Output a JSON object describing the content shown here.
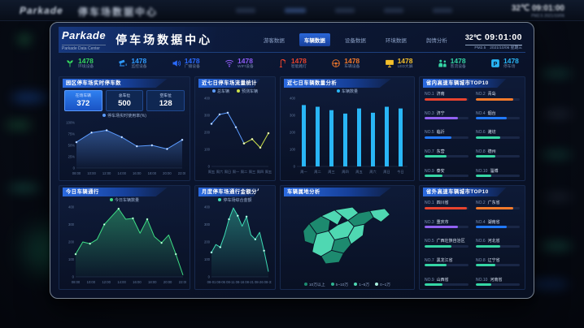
{
  "background": {
    "brand": "Parkade",
    "title": "停车场数据中心",
    "time": "32℃ 09:01:00",
    "meta": "PM2.5   2021/10/06"
  },
  "header": {
    "brand": "Parkade",
    "subtitle": "Parkade Data Center",
    "title": "停车场数据中心",
    "nav": [
      {
        "label": "游客数据",
        "active": false
      },
      {
        "label": "车辆数据",
        "active": true
      },
      {
        "label": "设备数据",
        "active": false
      },
      {
        "label": "环境数据",
        "active": false
      },
      {
        "label": "舆情分析",
        "active": false
      }
    ],
    "temp": "32℃",
    "time": "09:01:00",
    "pm": "PM2.5",
    "date": "2021/10/06 星期三"
  },
  "stats": [
    {
      "icon": "leaf-icon",
      "value": "1478",
      "label": "环境设备",
      "color": "#35d65e"
    },
    {
      "icon": "camera-icon",
      "value": "1478",
      "label": "监控设备",
      "color": "#2f9bff"
    },
    {
      "icon": "speaker-icon",
      "value": "1478",
      "label": "广播设备",
      "color": "#2b6bff"
    },
    {
      "icon": "wifi-icon",
      "value": "1478",
      "label": "WIFI设备",
      "color": "#8e5cf6"
    },
    {
      "icon": "lamp-icon",
      "value": "1478",
      "label": "智能路灯",
      "color": "#e8432e"
    },
    {
      "icon": "steering-wheel-icon",
      "value": "1478",
      "label": "车辆设备",
      "color": "#f57a2b"
    },
    {
      "icon": "screen-icon",
      "value": "1478",
      "label": "LED大屏",
      "color": "#f5c02b"
    },
    {
      "icon": "people-icon",
      "value": "1478",
      "label": "客流设备",
      "color": "#35d6a5"
    },
    {
      "icon": "parking-icon",
      "value": "1478",
      "label": "停车场",
      "color": "#29b6f6"
    }
  ],
  "panels": {
    "realtime": {
      "title": "园区停车场实时停车数",
      "boxes": [
        {
          "label": "在场车辆",
          "value": "372"
        },
        {
          "label": "总车位",
          "value": "500"
        },
        {
          "label": "空车位",
          "value": "128"
        }
      ]
    },
    "flow": {
      "title": "近七日停车场流量统计"
    },
    "daily": {
      "title": "近七日车辆数量分析"
    },
    "top_in": {
      "title": "省内高速车辆城市TOP10"
    },
    "today": {
      "title": "今日车辆通行"
    },
    "monthly": {
      "title": "月度停车场通行金额分析"
    },
    "map": {
      "title": "车辆属地分析",
      "legend": [
        {
          "label": "10万以上",
          "color": "#1d8a6f"
        },
        {
          "label": "5~10万",
          "color": "#2fb391"
        },
        {
          "label": "1~5万",
          "color": "#4fd8b2"
        },
        {
          "label": "0~1万",
          "color": "#a9efdd"
        }
      ]
    },
    "top_out": {
      "title": "省外高速车辆城市TOP10"
    }
  },
  "chart_data": [
    {
      "id": "usage",
      "type": "line",
      "area": true,
      "title": "园区停车场实时停车数",
      "categories": [
        "08:00",
        "10:00",
        "12:00",
        "14:00",
        "16:00",
        "18:00",
        "20:00",
        "22:00"
      ],
      "series": [
        {
          "name": "停车场实时使用率(%)",
          "color": "#5b9bff",
          "values": [
            57,
            78,
            83,
            68,
            48,
            50,
            42,
            62
          ]
        }
      ],
      "ylim": [
        0,
        100
      ],
      "yticks": [
        "100%",
        "75%",
        "50%",
        "25%",
        "0"
      ]
    },
    {
      "id": "flow",
      "type": "line",
      "area": false,
      "title": "近七日停车场流量统计",
      "categories": [
        "周五",
        "周六",
        "周日",
        "周一",
        "周二",
        "周三",
        "周四",
        "周五"
      ],
      "series": [
        {
          "name": "总车辆",
          "color": "#5b9bff",
          "values": [
            250,
            305,
            315,
            230,
            135,
            null,
            null,
            null
          ]
        },
        {
          "name": "预测车辆",
          "color": "#cbe04a",
          "values": [
            null,
            null,
            null,
            null,
            135,
            160,
            110,
            195
          ]
        }
      ],
      "ylim": [
        0,
        400
      ],
      "yticks": [
        "400",
        "300",
        "200",
        "100",
        "0"
      ]
    },
    {
      "id": "daily",
      "type": "bar",
      "title": "近七日车辆数量分析",
      "categories": [
        "周一",
        "周二",
        "周三",
        "周四",
        "周五",
        "周六",
        "周日",
        "今日"
      ],
      "series": [
        {
          "name": "车辆数量",
          "color": "#29b6f6",
          "values": [
            360,
            350,
            330,
            310,
            340,
            315,
            350,
            340
          ]
        }
      ],
      "ylim": [
        0,
        400
      ],
      "yticks": [
        "400",
        "300",
        "200",
        "100",
        "0"
      ]
    },
    {
      "id": "today",
      "type": "area",
      "title": "今日车辆通行",
      "xticks": [
        "08:00",
        "10:00",
        "12:00",
        "14:00",
        "16:00",
        "18:00",
        "20:00",
        "22:00"
      ],
      "series": [
        {
          "name": "今日车辆数量",
          "color": "#3ddc84",
          "values": [
            130,
            200,
            190,
            215,
            300,
            345,
            390,
            330,
            335,
            250,
            330,
            230,
            195,
            240,
            130,
            10
          ]
        }
      ],
      "ylim": [
        0,
        400
      ],
      "yticks": [
        "400",
        "300",
        "200",
        "100",
        "0"
      ]
    },
    {
      "id": "monthly",
      "type": "area",
      "title": "月度停车场通行金额分析",
      "xticks": [
        "08-01",
        "08-06",
        "08-11",
        "08-16",
        "08-21",
        "08-26",
        "08-31"
      ],
      "series": [
        {
          "name": "停车场综合金额",
          "color": "#3ddbb4",
          "values": [
            140,
            185,
            170,
            240,
            330,
            395,
            350,
            290,
            345,
            240,
            215,
            255,
            150,
            30
          ]
        }
      ],
      "ylim": [
        0,
        400
      ],
      "yticks": [
        "400",
        "300",
        "200",
        "100",
        "0"
      ]
    }
  ],
  "top10_in": [
    {
      "rank": "NO.1",
      "name": "济南",
      "pct": 96,
      "color": "#e8432e"
    },
    {
      "rank": "NO.2",
      "name": "青岛",
      "pct": 85,
      "color": "#f57a2b"
    },
    {
      "rank": "NO.3",
      "name": "济宁",
      "pct": 75,
      "color": "#9161f2"
    },
    {
      "rank": "NO.4",
      "name": "烟台",
      "pct": 70,
      "color": "#2179ff"
    },
    {
      "rank": "NO.5",
      "name": "临沂",
      "pct": 62,
      "color": "#2179ff"
    },
    {
      "rank": "NO.6",
      "name": "潍坊",
      "pct": 55,
      "color": "#35d6a5"
    },
    {
      "rank": "NO.7",
      "name": "东营",
      "pct": 50,
      "color": "#35d6a5"
    },
    {
      "rank": "NO.8",
      "name": "德州",
      "pct": 45,
      "color": "#35d6a5"
    },
    {
      "rank": "NO.9",
      "name": "泰安",
      "pct": 40,
      "color": "#35d6a5"
    },
    {
      "rank": "NO.10",
      "name": "淄博",
      "pct": 35,
      "color": "#35d6a5"
    }
  ],
  "top10_out": [
    {
      "rank": "NO.1",
      "name": "四川省",
      "pct": 96,
      "color": "#e8432e"
    },
    {
      "rank": "NO.2",
      "name": "广东省",
      "pct": 85,
      "color": "#f57a2b"
    },
    {
      "rank": "NO.3",
      "name": "重庆市",
      "pct": 75,
      "color": "#9161f2"
    },
    {
      "rank": "NO.4",
      "name": "湖南省",
      "pct": 70,
      "color": "#2179ff"
    },
    {
      "rank": "NO.5",
      "name": "广西壮族自治区",
      "pct": 62,
      "color": "#35d6a5"
    },
    {
      "rank": "NO.6",
      "name": "河北省",
      "pct": 55,
      "color": "#35d6a5"
    },
    {
      "rank": "NO.7",
      "name": "黑龙江省",
      "pct": 50,
      "color": "#35d6a5"
    },
    {
      "rank": "NO.8",
      "name": "辽宁省",
      "pct": 45,
      "color": "#35d6a5"
    },
    {
      "rank": "NO.9",
      "name": "山西省",
      "pct": 40,
      "color": "#35d6a5"
    },
    {
      "rank": "NO.10",
      "name": "河南省",
      "pct": 35,
      "color": "#35d6a5"
    }
  ]
}
